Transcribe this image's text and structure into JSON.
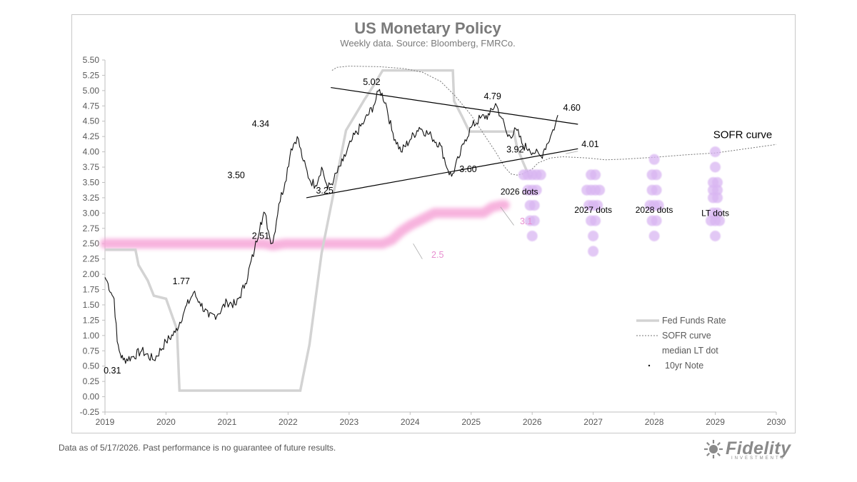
{
  "footer": {
    "note": "Data as of 5/17/2026. Past performance is no guarantee of future results.",
    "logo_text": "Fidelity",
    "logo_sub": "INVESTMENTS"
  },
  "chart_data": {
    "type": "line",
    "title": "US Monetary Policy",
    "subtitle": "Weekly data.  Source: Bloomberg, FMRCo.",
    "xlim": [
      2019,
      2030
    ],
    "ylim": [
      -0.25,
      5.5
    ],
    "xticks": [
      "2019",
      "2020",
      "2021",
      "2022",
      "2023",
      "2024",
      "2025",
      "2026",
      "2027",
      "2028",
      "2029",
      "2030"
    ],
    "yticks": [
      "5.50",
      "5.25",
      "5.00",
      "4.75",
      "4.50",
      "4.25",
      "4.00",
      "3.75",
      "3.50",
      "3.25",
      "3.00",
      "2.75",
      "2.50",
      "2.25",
      "2.00",
      "1.75",
      "1.50",
      "1.25",
      "1.00",
      "0.75",
      "0.50",
      "0.25",
      "0.00",
      "-0.25"
    ],
    "legend": {
      "position": "bottom-right",
      "entries": [
        "Fed Funds Rate",
        "SOFR curve",
        "median LT dot",
        "10yr Note"
      ]
    },
    "colors": {
      "fed_funds": "#d3d3d3",
      "sofr": "#777777",
      "lt_dot": "#f6a6d8",
      "ten_year": "#111111",
      "dots": "#d9b6f2",
      "lt_label": "#e88fd0"
    },
    "series": [
      {
        "name": "Fed Funds Rate",
        "points": [
          [
            2019.0,
            2.4
          ],
          [
            2019.5,
            2.4
          ],
          [
            2019.55,
            2.15
          ],
          [
            2019.7,
            1.9
          ],
          [
            2019.8,
            1.65
          ],
          [
            2020.0,
            1.6
          ],
          [
            2020.18,
            1.1
          ],
          [
            2020.22,
            0.1
          ],
          [
            2022.2,
            0.1
          ],
          [
            2022.25,
            0.35
          ],
          [
            2022.35,
            0.85
          ],
          [
            2022.45,
            1.6
          ],
          [
            2022.55,
            2.35
          ],
          [
            2022.7,
            3.1
          ],
          [
            2022.85,
            3.85
          ],
          [
            2022.95,
            4.35
          ],
          [
            2023.1,
            4.6
          ],
          [
            2023.25,
            4.85
          ],
          [
            2023.4,
            5.08
          ],
          [
            2023.55,
            5.33
          ],
          [
            2024.7,
            5.33
          ],
          [
            2024.72,
            4.83
          ],
          [
            2024.85,
            4.58
          ],
          [
            2024.97,
            4.33
          ],
          [
            2025.7,
            4.33
          ],
          [
            2025.75,
            4.08
          ],
          [
            2025.85,
            3.83
          ],
          [
            2025.95,
            3.6
          ],
          [
            2026.0,
            3.6
          ]
        ]
      },
      {
        "name": "SOFR curve",
        "points": [
          [
            2022.72,
            5.33
          ],
          [
            2022.8,
            5.38
          ],
          [
            2023.0,
            5.4
          ],
          [
            2023.5,
            5.39
          ],
          [
            2023.9,
            5.36
          ],
          [
            2024.2,
            5.3
          ],
          [
            2024.5,
            5.15
          ],
          [
            2024.75,
            4.9
          ],
          [
            2025.0,
            4.6
          ],
          [
            2025.2,
            4.3
          ],
          [
            2025.4,
            4.0
          ],
          [
            2025.55,
            3.75
          ],
          [
            2025.65,
            3.64
          ],
          [
            2025.75,
            3.62
          ],
          [
            2025.85,
            3.64
          ],
          [
            2026.0,
            3.72
          ],
          [
            2026.1,
            3.82
          ],
          [
            2026.3,
            3.9
          ],
          [
            2026.5,
            3.92
          ],
          [
            2026.9,
            3.9
          ],
          [
            2027.2,
            3.87
          ],
          [
            2027.5,
            3.88
          ],
          [
            2028.0,
            3.91
          ],
          [
            2028.5,
            3.95
          ],
          [
            2029.0,
            3.98
          ],
          [
            2029.5,
            4.05
          ],
          [
            2030.0,
            4.12
          ]
        ]
      },
      {
        "name": "median LT dot",
        "points": [
          [
            2019.0,
            2.5
          ],
          [
            2021.6,
            2.5
          ],
          [
            2021.75,
            2.47
          ],
          [
            2021.95,
            2.5
          ],
          [
            2023.55,
            2.5
          ],
          [
            2023.7,
            2.56
          ],
          [
            2023.85,
            2.7
          ],
          [
            2024.0,
            2.8
          ],
          [
            2024.2,
            2.9
          ],
          [
            2024.4,
            3.0
          ],
          [
            2025.2,
            3.0
          ],
          [
            2025.35,
            3.1
          ],
          [
            2025.5,
            3.13
          ],
          [
            2025.55,
            3.13
          ]
        ]
      },
      {
        "name": "10yr Note",
        "points": [
          [
            2019.0,
            1.95
          ],
          [
            2019.05,
            1.85
          ],
          [
            2019.1,
            1.7
          ],
          [
            2019.15,
            1.6
          ],
          [
            2019.2,
            0.9
          ],
          [
            2019.25,
            0.7
          ],
          [
            2019.3,
            0.6
          ],
          [
            2019.45,
            0.65
          ],
          [
            2019.6,
            0.75
          ],
          [
            2019.8,
            0.6
          ],
          [
            2020.0,
            0.9
          ],
          [
            2020.15,
            1.05
          ],
          [
            2020.3,
            1.4
          ],
          [
            2020.45,
            1.7
          ],
          [
            2020.55,
            1.55
          ],
          [
            2020.7,
            1.3
          ],
          [
            2020.85,
            1.35
          ],
          [
            2021.0,
            1.55
          ],
          [
            2021.15,
            1.5
          ],
          [
            2021.3,
            1.85
          ],
          [
            2021.45,
            2.4
          ],
          [
            2021.55,
            2.85
          ],
          [
            2021.62,
            3.0
          ],
          [
            2021.7,
            2.6
          ],
          [
            2021.75,
            2.51
          ],
          [
            2021.85,
            3.15
          ],
          [
            2021.95,
            3.5
          ],
          [
            2022.05,
            4.05
          ],
          [
            2022.15,
            4.25
          ],
          [
            2022.25,
            3.85
          ],
          [
            2022.35,
            3.55
          ],
          [
            2022.45,
            3.45
          ],
          [
            2022.55,
            3.75
          ],
          [
            2022.65,
            3.4
          ],
          [
            2022.75,
            3.55
          ],
          [
            2022.9,
            3.85
          ],
          [
            2023.05,
            4.2
          ],
          [
            2023.25,
            4.5
          ],
          [
            2023.4,
            4.75
          ],
          [
            2023.5,
            5.02
          ],
          [
            2023.6,
            4.8
          ],
          [
            2023.7,
            4.35
          ],
          [
            2023.85,
            4.0
          ],
          [
            2024.0,
            4.2
          ],
          [
            2024.15,
            4.4
          ],
          [
            2024.35,
            4.25
          ],
          [
            2024.5,
            4.1
          ],
          [
            2024.62,
            3.7
          ],
          [
            2024.68,
            3.6
          ],
          [
            2024.8,
            3.9
          ],
          [
            2024.9,
            4.2
          ],
          [
            2025.0,
            4.4
          ],
          [
            2025.15,
            4.55
          ],
          [
            2025.3,
            4.6
          ],
          [
            2025.4,
            4.79
          ],
          [
            2025.5,
            4.55
          ],
          [
            2025.6,
            4.25
          ],
          [
            2025.75,
            4.35
          ],
          [
            2025.85,
            4.1
          ],
          [
            2025.95,
            4.05
          ],
          [
            2026.05,
            3.98
          ],
          [
            2026.15,
            3.92
          ],
          [
            2026.2,
            4.05
          ],
          [
            2026.3,
            4.25
          ],
          [
            2026.38,
            4.45
          ],
          [
            2026.42,
            4.6
          ]
        ]
      }
    ],
    "dot_plots": [
      {
        "label": "2026 dots",
        "x": 2026,
        "y": [
          3.625,
          3.375,
          3.125,
          2.875,
          2.625
        ],
        "counts": [
          5,
          3,
          2,
          2,
          1
        ]
      },
      {
        "label": "2027 dots",
        "x": 2027,
        "y": [
          3.625,
          3.375,
          3.125,
          2.875,
          2.625,
          2.375
        ],
        "counts": [
          2,
          4,
          3,
          2,
          1,
          1
        ]
      },
      {
        "label": "2028 dots",
        "x": 2028,
        "y": [
          3.875,
          3.625,
          3.375,
          3.125,
          2.875,
          2.625
        ],
        "counts": [
          1,
          2,
          2,
          3,
          2,
          1
        ]
      },
      {
        "label": "LT dots",
        "x": 2029,
        "y": [
          4.0,
          3.75,
          3.5,
          3.375,
          3.25,
          3.0,
          2.875,
          2.625
        ],
        "counts": [
          1,
          1,
          2,
          2,
          2,
          2,
          3,
          1
        ]
      }
    ],
    "triangle_lines": [
      {
        "from": [
          2022.7,
          5.05
        ],
        "to": [
          2026.75,
          4.45
        ]
      },
      {
        "from": [
          2022.3,
          3.25
        ],
        "to": [
          2026.75,
          4.05
        ]
      }
    ],
    "annotations": [
      {
        "text": "5.02",
        "x": 2023.37,
        "y": 5.02,
        "color": "#000000",
        "anchor": "middle"
      },
      {
        "text": "4.79",
        "x": 2025.35,
        "y": 4.79,
        "color": "#000000",
        "anchor": "middle"
      },
      {
        "text": "4.60",
        "x": 2026.65,
        "y": 4.6,
        "color": "#000000",
        "anchor": "middle"
      },
      {
        "text": "4.34",
        "x": 2021.55,
        "y": 4.34,
        "color": "#000000",
        "anchor": "middle"
      },
      {
        "text": "3.50",
        "x": 2021.15,
        "y": 3.5,
        "color": "#000000",
        "anchor": "middle"
      },
      {
        "text": "3.25",
        "x": 2022.6,
        "y": 3.25,
        "color": "#000000",
        "anchor": "middle"
      },
      {
        "text": "3.60",
        "x": 2024.95,
        "y": 3.6,
        "color": "#000000",
        "anchor": "middle"
      },
      {
        "text": "3.92",
        "x": 2025.72,
        "y": 3.92,
        "color": "#000000",
        "anchor": "middle"
      },
      {
        "text": "1.77",
        "x": 2020.25,
        "y": 1.77,
        "color": "#000000",
        "anchor": "middle"
      },
      {
        "text": "2.51",
        "x": 2021.55,
        "y": 2.51,
        "color": "#000000",
        "anchor": "middle"
      },
      {
        "text": "0.31",
        "x": 2019.12,
        "y": 0.31,
        "color": "#000000",
        "anchor": "middle"
      },
      {
        "text": "4.01",
        "x": 2026.95,
        "y": 4.01,
        "color": "#000000",
        "anchor": "middle"
      },
      {
        "text": "SOFR curve",
        "x": 2029.45,
        "y": 4.15,
        "color": "#000000",
        "anchor": "middle",
        "size": 15
      },
      {
        "text": "2.5",
        "x": 2024.45,
        "y": 2.2,
        "color": "#e88fd0",
        "anchor": "middle"
      },
      {
        "text": "3.1",
        "x": 2025.9,
        "y": 2.75,
        "color": "#e88fd0",
        "anchor": "middle"
      }
    ]
  }
}
